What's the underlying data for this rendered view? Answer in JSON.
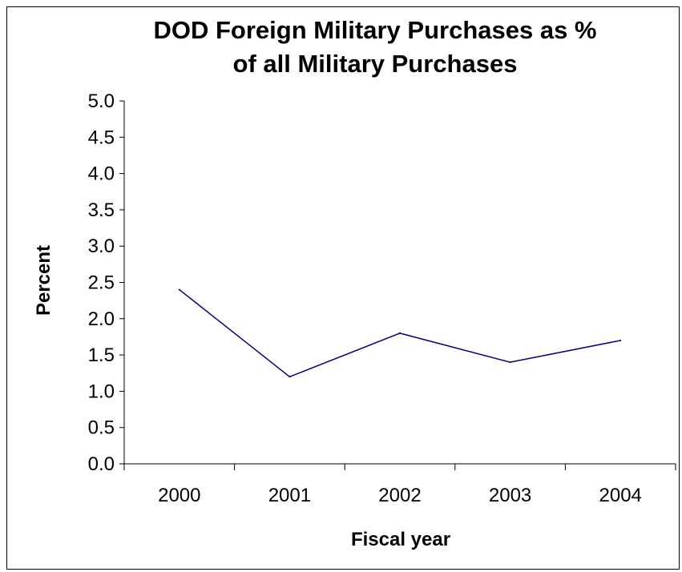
{
  "chart_data": {
    "type": "line",
    "title": [
      "DOD Foreign Military Purchases as %",
      "of all Military Purchases"
    ],
    "xlabel": "Fiscal year",
    "ylabel": "Percent",
    "categories": [
      "2000",
      "2001",
      "2002",
      "2003",
      "2004"
    ],
    "series": [
      {
        "values": [
          2.4,
          1.2,
          1.8,
          1.4,
          1.7
        ],
        "color": "#000080"
      }
    ],
    "ylim": [
      0,
      5.0
    ],
    "yticks": [
      "0.0",
      "0.5",
      "1.0",
      "1.5",
      "2.0",
      "2.5",
      "3.0",
      "3.5",
      "4.0",
      "4.5",
      "5.0"
    ],
    "grid": false,
    "legend": "none"
  }
}
